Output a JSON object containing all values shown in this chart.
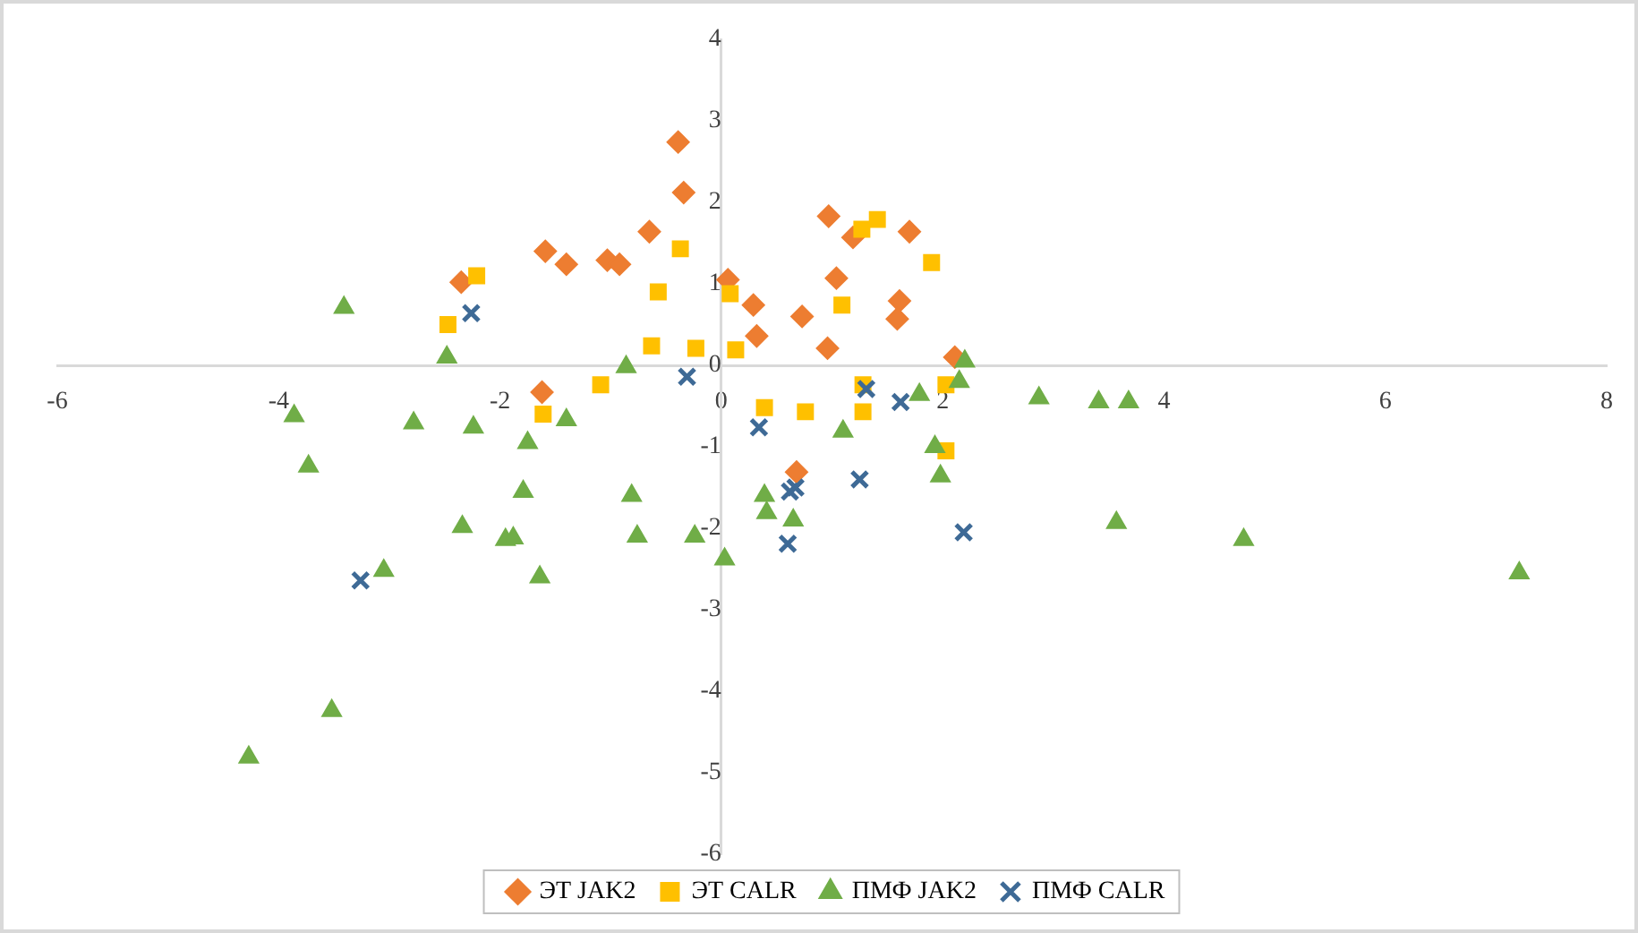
{
  "chart_data": {
    "type": "scatter",
    "xlim": [
      -6,
      8
    ],
    "xticks": [
      -6,
      -4,
      -2,
      0,
      2,
      4,
      6,
      8
    ],
    "ylim": [
      -6,
      4
    ],
    "yticks": [
      -6,
      -5,
      -4,
      -3,
      -2,
      -1,
      0,
      1,
      2,
      3,
      4
    ],
    "grid": false,
    "legend": "bottom",
    "series": [
      {
        "name": "ЭТ JAK2",
        "color": "#ed7d31",
        "marker": "diamond",
        "x": [
          -0.39,
          -0.34,
          -1.59,
          -1.4,
          -1.03,
          -0.92,
          -0.65,
          -2.35,
          -1.62,
          0.06,
          0.29,
          0.32,
          0.73,
          0.96,
          0.97,
          1.19,
          1.04,
          1.7,
          1.61,
          1.59,
          2.11,
          0.68
        ],
        "values": [
          2.74,
          2.12,
          1.4,
          1.24,
          1.29,
          1.24,
          1.64,
          1.02,
          -0.33,
          1.05,
          0.74,
          0.36,
          0.6,
          0.21,
          1.83,
          1.57,
          1.07,
          1.64,
          0.79,
          0.57,
          0.1,
          -1.31
        ]
      },
      {
        "name": "ЭТ CALR",
        "color": "#ffc000",
        "marker": "square",
        "x": [
          -2.47,
          -2.21,
          -0.37,
          -0.57,
          -0.63,
          -0.23,
          -1.09,
          -1.61,
          0.08,
          0.13,
          0.39,
          0.76,
          1.09,
          1.27,
          1.41,
          1.9,
          1.28,
          1.28,
          2.03,
          2.03
        ],
        "values": [
          0.5,
          1.1,
          1.43,
          0.9,
          0.24,
          0.21,
          -0.24,
          -0.6,
          0.88,
          0.19,
          -0.52,
          -0.57,
          0.74,
          1.67,
          1.79,
          1.26,
          -0.24,
          -0.57,
          -0.24,
          -1.05
        ]
      },
      {
        "name": "ПМФ JAK2",
        "color": "#70ad47",
        "marker": "triangle",
        "x": [
          -3.41,
          -2.48,
          -3.86,
          -3.73,
          -2.78,
          -2.24,
          -1.75,
          -1.4,
          -0.86,
          -2.34,
          -1.95,
          -1.88,
          -1.79,
          -1.64,
          -3.05,
          -3.52,
          -4.27,
          -0.81,
          -0.76,
          -0.24,
          0.03,
          0.39,
          0.41,
          0.65,
          1.1,
          1.79,
          1.93,
          1.98,
          2.15,
          2.2,
          2.87,
          3.41,
          3.68,
          3.57,
          4.72,
          7.21
        ],
        "values": [
          0.71,
          0.1,
          -0.62,
          -1.24,
          -0.71,
          -0.76,
          -0.95,
          -0.67,
          -0.02,
          -1.98,
          -2.14,
          -2.12,
          -1.55,
          -2.6,
          -2.52,
          -4.24,
          -4.81,
          -1.6,
          -2.1,
          -2.1,
          -2.38,
          -1.6,
          -1.81,
          -1.9,
          -0.81,
          -0.36,
          -1.0,
          -1.36,
          -0.2,
          0.05,
          -0.4,
          -0.45,
          -0.45,
          -1.93,
          -2.14,
          -2.55
        ]
      },
      {
        "name": "ПМФ CALR",
        "color": "#3e6a96",
        "marker": "cross",
        "x": [
          -2.26,
          -3.26,
          -0.31,
          0.34,
          0.62,
          0.67,
          0.6,
          1.31,
          1.62,
          1.25,
          2.19
        ],
        "values": [
          0.64,
          -2.64,
          -0.14,
          -0.76,
          -1.55,
          -1.5,
          -2.19,
          -0.29,
          -0.45,
          -1.4,
          -2.05
        ]
      }
    ]
  }
}
